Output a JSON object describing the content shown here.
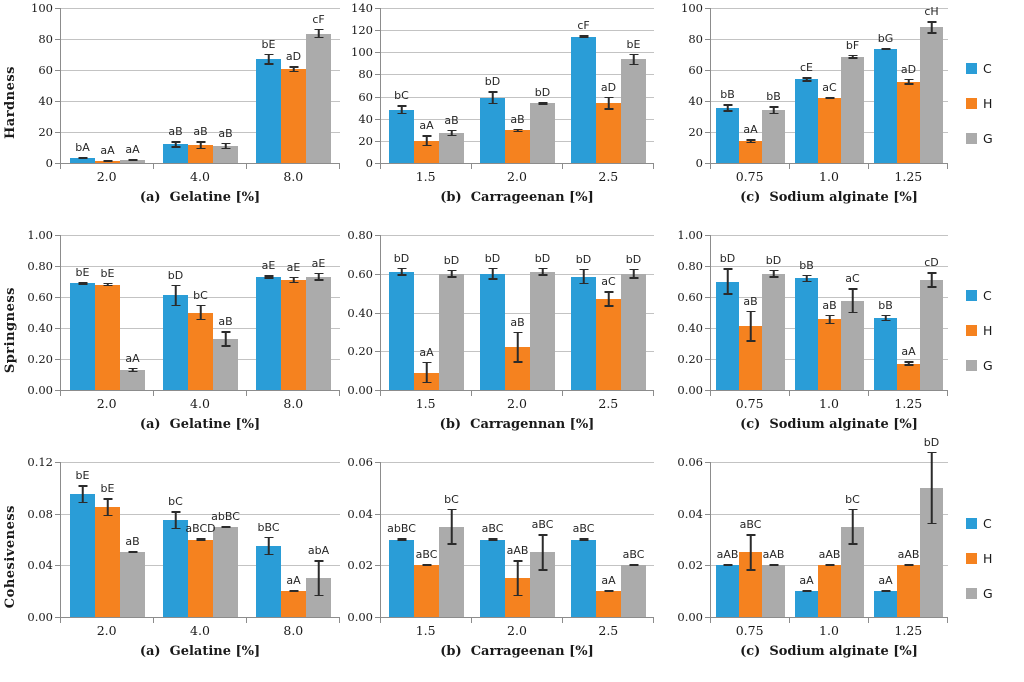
{
  "palette": {
    "C": "#2A9DD7",
    "H": "#F5821F",
    "G": "#ABABAB"
  },
  "legend": {
    "entries": [
      {
        "name": "C"
      },
      {
        "name": "H"
      },
      {
        "name": "G"
      }
    ]
  },
  "chart_data": [
    {
      "type": "bar",
      "title": "(a)  Gelatine [%]",
      "ylabel": "Hardness",
      "categories": [
        "2.0",
        "4.0",
        "8.0"
      ],
      "ylim": [
        0,
        100
      ],
      "ystep": 20,
      "ydecimals": 0,
      "grid": true,
      "legend_position": "none",
      "series": [
        {
          "name": "C",
          "values": [
            3,
            12,
            67
          ],
          "errors": [
            0.6,
            2,
            3.5
          ],
          "point_labels": [
            "bA",
            "aB",
            "bE"
          ]
        },
        {
          "name": "H",
          "values": [
            1.5,
            11.5,
            60.5
          ],
          "errors": [
            0.4,
            2.5,
            2
          ],
          "point_labels": [
            "aA",
            "aB",
            "aD"
          ]
        },
        {
          "name": "G",
          "values": [
            1.7,
            11,
            83.5
          ],
          "errors": [
            0.6,
            2,
            3
          ],
          "point_labels": [
            "aA",
            "aB",
            "cF"
          ]
        }
      ]
    },
    {
      "type": "bar",
      "title": "(b)  Carrageenan [%]",
      "ylabel": "",
      "categories": [
        "1.5",
        "2.0",
        "2.5"
      ],
      "ylim": [
        0,
        140
      ],
      "ystep": 20,
      "ydecimals": 0,
      "grid": true,
      "legend_position": "none",
      "series": [
        {
          "name": "C",
          "values": [
            48,
            59,
            114
          ],
          "errors": [
            4,
            6,
            1.5
          ],
          "point_labels": [
            "bC",
            "bD",
            "cF"
          ]
        },
        {
          "name": "H",
          "values": [
            20,
            29.5,
            54
          ],
          "errors": [
            5,
            1.5,
            6
          ],
          "point_labels": [
            "aA",
            "aB",
            "aD"
          ]
        },
        {
          "name": "G",
          "values": [
            27,
            54,
            93.5
          ],
          "errors": [
            3,
            1.5,
            5
          ],
          "point_labels": [
            "aB",
            "bD",
            "bE"
          ]
        }
      ]
    },
    {
      "type": "bar",
      "title": "(c)  Sodium alginate [%]",
      "ylabel": "",
      "categories": [
        "0.75",
        "1.0",
        "1.25"
      ],
      "ylim": [
        0,
        100
      ],
      "ystep": 20,
      "ydecimals": 0,
      "grid": true,
      "legend_position": "right",
      "series": [
        {
          "name": "C",
          "values": [
            35.5,
            54,
            73.5
          ],
          "errors": [
            2.5,
            1.5,
            0.7
          ],
          "point_labels": [
            "bB",
            "cE",
            "bG"
          ]
        },
        {
          "name": "H",
          "values": [
            14,
            42,
            52.5
          ],
          "errors": [
            1.2,
            0.7,
            2
          ],
          "point_labels": [
            "aA",
            "aC",
            "aD"
          ]
        },
        {
          "name": "G",
          "values": [
            34,
            68.5,
            87.5
          ],
          "errors": [
            2.5,
            1.2,
            4
          ],
          "point_labels": [
            "bB",
            "bF",
            "cH"
          ]
        }
      ]
    },
    {
      "type": "bar",
      "title": "(a)  Gelatine [%]",
      "ylabel": "Springness",
      "categories": [
        "2.0",
        "4.0",
        "8.0"
      ],
      "ylim": [
        0,
        1.0
      ],
      "ystep": 0.2,
      "ydecimals": 2,
      "grid": true,
      "legend_position": "none",
      "series": [
        {
          "name": "C",
          "values": [
            0.69,
            0.61,
            0.73
          ],
          "errors": [
            0.01,
            0.07,
            0.012
          ],
          "point_labels": [
            "bE",
            "bD",
            "aE"
          ]
        },
        {
          "name": "H",
          "values": [
            0.68,
            0.5,
            0.71
          ],
          "errors": [
            0.012,
            0.05,
            0.02
          ],
          "point_labels": [
            "bE",
            "bC",
            "aE"
          ]
        },
        {
          "name": "G",
          "values": [
            0.13,
            0.33,
            0.73
          ],
          "errors": [
            0.015,
            0.05,
            0.025
          ],
          "point_labels": [
            "aA",
            "aB",
            "aE"
          ]
        }
      ]
    },
    {
      "type": "bar",
      "title": "(b)  Carragennan [%]",
      "ylabel": "",
      "categories": [
        "1.5",
        "2.0",
        "2.5"
      ],
      "ylim": [
        0,
        0.8
      ],
      "ystep": 0.2,
      "ydecimals": 2,
      "grid": true,
      "legend_position": "none",
      "series": [
        {
          "name": "C",
          "values": [
            0.61,
            0.6,
            0.585
          ],
          "errors": [
            0.02,
            0.03,
            0.04
          ],
          "point_labels": [
            "bD",
            "bD",
            "bD"
          ]
        },
        {
          "name": "H",
          "values": [
            0.09,
            0.22,
            0.47
          ],
          "errors": [
            0.055,
            0.08,
            0.04
          ],
          "point_labels": [
            "aA",
            "aB",
            "aC"
          ]
        },
        {
          "name": "G",
          "values": [
            0.6,
            0.61,
            0.6
          ],
          "errors": [
            0.02,
            0.02,
            0.025
          ],
          "point_labels": [
            "bD",
            "bD",
            "bD"
          ]
        }
      ]
    },
    {
      "type": "bar",
      "title": "(c)  Sodium alginate [%]",
      "ylabel": "",
      "categories": [
        "0.75",
        "1.0",
        "1.25"
      ],
      "ylim": [
        0,
        1.0
      ],
      "ystep": 0.2,
      "ydecimals": 2,
      "grid": true,
      "legend_position": "right",
      "series": [
        {
          "name": "C",
          "values": [
            0.7,
            0.72,
            0.465
          ],
          "errors": [
            0.085,
            0.025,
            0.02
          ],
          "point_labels": [
            "bD",
            "bB",
            "bB"
          ]
        },
        {
          "name": "H",
          "values": [
            0.41,
            0.455,
            0.17
          ],
          "errors": [
            0.1,
            0.03,
            0.015
          ],
          "point_labels": [
            "aB",
            "aB",
            "aA"
          ]
        },
        {
          "name": "G",
          "values": [
            0.75,
            0.575,
            0.71
          ],
          "errors": [
            0.025,
            0.08,
            0.05
          ],
          "point_labels": [
            "bD",
            "aC",
            "cD"
          ]
        }
      ]
    },
    {
      "type": "bar",
      "title": "(a)  Gelatine [%]",
      "ylabel": "Cohesiveness",
      "categories": [
        "2.0",
        "4.0",
        "8.0"
      ],
      "ylim": [
        0,
        0.12
      ],
      "ystep": 0.04,
      "ydecimals": 2,
      "grid": true,
      "legend_position": "none",
      "series": [
        {
          "name": "C",
          "values": [
            0.095,
            0.075,
            0.055
          ],
          "errors": [
            0.007,
            0.007,
            0.007
          ],
          "point_labels": [
            "bE",
            "bC",
            "bBC"
          ]
        },
        {
          "name": "H",
          "values": [
            0.085,
            0.06,
            0.02
          ],
          "errors": [
            0.007,
            0.0008,
            0.0008
          ],
          "point_labels": [
            "bE",
            "aBCD",
            "aA"
          ]
        },
        {
          "name": "G",
          "values": [
            0.05,
            0.07,
            0.03
          ],
          "errors": [
            0.0008,
            0.0008,
            0.014
          ],
          "point_labels": [
            "aB",
            "abBC",
            "abA"
          ]
        }
      ]
    },
    {
      "type": "bar",
      "title": "(b)  Carrageenan [%]",
      "ylabel": "",
      "categories": [
        "1.5",
        "2.0",
        "2.5"
      ],
      "ylim": [
        0,
        0.06
      ],
      "ystep": 0.02,
      "ydecimals": 2,
      "grid": true,
      "legend_position": "none",
      "series": [
        {
          "name": "C",
          "values": [
            0.03,
            0.03,
            0.03
          ],
          "errors": [
            0.0004,
            0.0004,
            0.0004
          ],
          "point_labels": [
            "abBC",
            "aBC",
            "aBC"
          ]
        },
        {
          "name": "H",
          "values": [
            0.02,
            0.015,
            0.01
          ],
          "errors": [
            0.0004,
            0.007,
            0.0004
          ],
          "point_labels": [
            "aBC",
            "aAB",
            "aA"
          ]
        },
        {
          "name": "G",
          "values": [
            0.035,
            0.025,
            0.02
          ],
          "errors": [
            0.007,
            0.007,
            0.0004
          ],
          "point_labels": [
            "bC",
            "aBC",
            "aBC"
          ]
        }
      ]
    },
    {
      "type": "bar",
      "title": "(c)  Sodium alginate [%]",
      "ylabel": "",
      "categories": [
        "0.75",
        "1.0",
        "1.25"
      ],
      "ylim": [
        0,
        0.06
      ],
      "ystep": 0.02,
      "ydecimals": 2,
      "grid": true,
      "legend_position": "right",
      "series": [
        {
          "name": "C",
          "values": [
            0.02,
            0.01,
            0.01
          ],
          "errors": [
            0.0004,
            0.0004,
            0.0004
          ],
          "point_labels": [
            "aAB",
            "aA",
            "aA"
          ]
        },
        {
          "name": "H",
          "values": [
            0.025,
            0.02,
            0.02
          ],
          "errors": [
            0.007,
            0.0004,
            0.0004
          ],
          "point_labels": [
            "aBC",
            "aAB",
            "aAB"
          ]
        },
        {
          "name": "G",
          "values": [
            0.02,
            0.035,
            0.05
          ],
          "errors": [
            0.0004,
            0.007,
            0.014
          ],
          "point_labels": [
            "aAB",
            "bC",
            "bD"
          ]
        }
      ]
    }
  ]
}
